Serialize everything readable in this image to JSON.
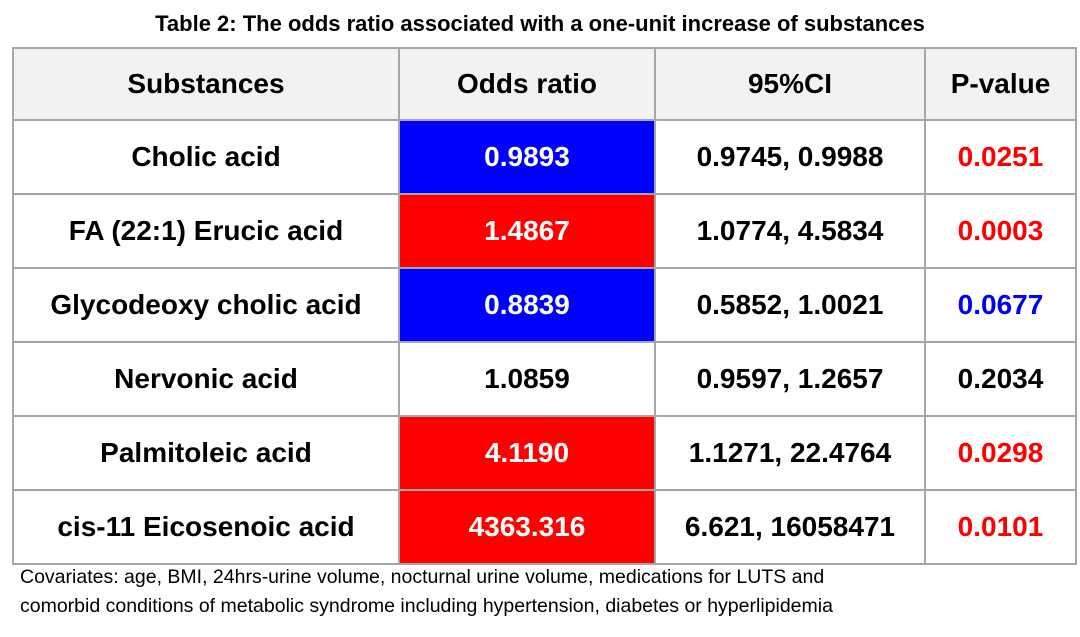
{
  "title": "Table 2: The odds ratio associated with a one-unit increase of substances",
  "columns": [
    "Substances",
    "Odds ratio",
    "95%CI",
    "P-value"
  ],
  "colors": {
    "blue": "#0000ff",
    "red": "#ff0000",
    "black": "#000000",
    "white": "#ffffff",
    "header_bg": "#f2f2f2"
  },
  "rows": [
    {
      "substance": "Cholic acid",
      "odds_ratio": "0.9893",
      "ci": "0.9745, 0.9988",
      "p_value": "0.0251",
      "or_bg": "#0000ff",
      "or_color": "#ffffff",
      "p_color": "#ff0000"
    },
    {
      "substance": "FA (22:1) Erucic acid",
      "odds_ratio": "1.4867",
      "ci": "1.0774, 4.5834",
      "p_value": "0.0003",
      "or_bg": "#ff0000",
      "or_color": "#ffffff",
      "p_color": "#ff0000"
    },
    {
      "substance": "Glycodeoxy cholic acid",
      "odds_ratio": "0.8839",
      "ci": "0.5852, 1.0021",
      "p_value": "0.0677",
      "or_bg": "#0000ff",
      "or_color": "#ffffff",
      "p_color": "#0000ff"
    },
    {
      "substance": "Nervonic acid",
      "odds_ratio": "1.0859",
      "ci": "0.9597, 1.2657",
      "p_value": "0.2034",
      "or_bg": "#ffffff",
      "or_color": "#000000",
      "p_color": "#000000"
    },
    {
      "substance": "Palmitoleic acid",
      "odds_ratio": "4.1190",
      "ci": "1.1271, 22.4764",
      "p_value": "0.0298",
      "or_bg": "#ff0000",
      "or_color": "#ffffff",
      "p_color": "#ff0000"
    },
    {
      "substance": "cis-11 Eicosenoic acid",
      "odds_ratio": "4363.316",
      "ci": "6.621, 16058471",
      "p_value": "0.0101",
      "or_bg": "#ff0000",
      "or_color": "#ffffff",
      "p_color": "#ff0000"
    }
  ],
  "footnote": {
    "line1": "Covariates: age, BMI, 24hrs-urine volume, nocturnal urine volume, medications for LUTS and",
    "line2": "comorbid conditions of metabolic syndrome including hypertension, diabetes or hyperlipidemia"
  }
}
